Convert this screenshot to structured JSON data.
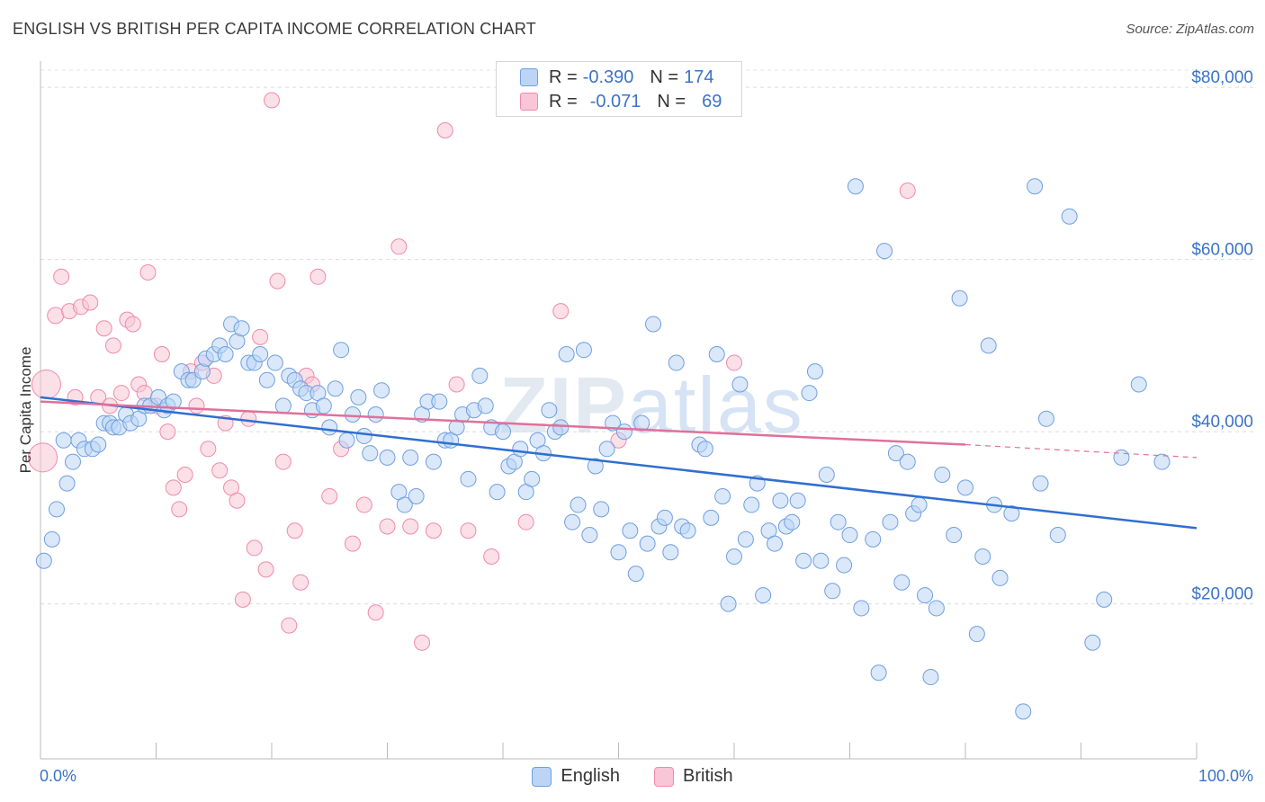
{
  "title": "ENGLISH VS BRITISH PER CAPITA INCOME CORRELATION CHART",
  "source": "Source: ZipAtlas.com",
  "watermark": {
    "bold": "ZIP",
    "light": "atlas"
  },
  "legend_top": [
    {
      "swatch_color": "#a9c8f0",
      "r_label": "R =",
      "r_value": "-0.390",
      "n_label": "N =",
      "n_value": "174"
    },
    {
      "swatch_color": "#f5b5c9",
      "r_label": "R =",
      "r_value": "-0.071",
      "n_label": "N =",
      "n_value": "69"
    }
  ],
  "legend_bottom": [
    {
      "label": "English",
      "color": "#a9c8f0"
    },
    {
      "label": "British",
      "color": "#f5b5c9"
    }
  ],
  "chart_data": {
    "type": "scatter",
    "title": "ENGLISH VS BRITISH PER CAPITA INCOME CORRELATION CHART",
    "ylabel": "Per Capita Income",
    "xlim": [
      0,
      100
    ],
    "ylim": [
      0,
      80000
    ],
    "x_tick_labels": [
      "0.0%",
      "100.0%"
    ],
    "y_ticks": [
      20000,
      40000,
      60000,
      80000
    ],
    "y_tick_labels": [
      "$20,000",
      "$40,000",
      "$60,000",
      "$80,000"
    ],
    "grid": "horizontal dashed",
    "legend_position": "top-center",
    "series": [
      {
        "name": "English",
        "color": "#6f9fe0",
        "r": -0.39,
        "n": 174,
        "trend": {
          "x0": 0,
          "y0": 44000,
          "x1": 100,
          "y1": 28800
        },
        "points": [
          [
            0.3,
            25000
          ],
          [
            1,
            27500
          ],
          [
            1.4,
            31000
          ],
          [
            2,
            39000
          ],
          [
            2.3,
            34000
          ],
          [
            2.8,
            36500
          ],
          [
            3.3,
            39000
          ],
          [
            3.8,
            38000
          ],
          [
            4.5,
            38000
          ],
          [
            5,
            38500
          ],
          [
            5.5,
            41000
          ],
          [
            6,
            41000
          ],
          [
            6.3,
            40500
          ],
          [
            6.8,
            40500
          ],
          [
            7.4,
            42000
          ],
          [
            7.8,
            41000
          ],
          [
            8.5,
            41500
          ],
          [
            9,
            43000
          ],
          [
            9.5,
            43000
          ],
          [
            10.2,
            44000
          ],
          [
            10.7,
            42500
          ],
          [
            11,
            43000
          ],
          [
            11.5,
            43500
          ],
          [
            12.2,
            47000
          ],
          [
            12.8,
            46000
          ],
          [
            13.2,
            46000
          ],
          [
            14,
            47000
          ],
          [
            14.3,
            48500
          ],
          [
            15,
            49000
          ],
          [
            15.5,
            50000
          ],
          [
            16,
            49000
          ],
          [
            16.5,
            52500
          ],
          [
            17,
            50500
          ],
          [
            17.4,
            52000
          ],
          [
            18,
            48000
          ],
          [
            18.5,
            48000
          ],
          [
            19,
            49000
          ],
          [
            19.6,
            46000
          ],
          [
            20.3,
            48000
          ],
          [
            21,
            43000
          ],
          [
            21.5,
            46500
          ],
          [
            22,
            46000
          ],
          [
            22.5,
            45000
          ],
          [
            23,
            44500
          ],
          [
            23.5,
            42500
          ],
          [
            24,
            44500
          ],
          [
            24.5,
            43000
          ],
          [
            25,
            40500
          ],
          [
            25.5,
            45000
          ],
          [
            26,
            49500
          ],
          [
            26.5,
            39000
          ],
          [
            27,
            42000
          ],
          [
            27.5,
            44000
          ],
          [
            28,
            39500
          ],
          [
            28.5,
            37500
          ],
          [
            29,
            42000
          ],
          [
            29.5,
            44800
          ],
          [
            30,
            37000
          ],
          [
            31,
            33000
          ],
          [
            31.5,
            31500
          ],
          [
            32,
            37000
          ],
          [
            32.5,
            32500
          ],
          [
            33,
            42000
          ],
          [
            33.5,
            43500
          ],
          [
            34,
            36500
          ],
          [
            34.5,
            43500
          ],
          [
            35,
            39000
          ],
          [
            35.5,
            39000
          ],
          [
            36,
            40500
          ],
          [
            36.5,
            42000
          ],
          [
            37,
            34500
          ],
          [
            37.5,
            42500
          ],
          [
            38,
            46500
          ],
          [
            38.5,
            43000
          ],
          [
            39,
            40500
          ],
          [
            39.5,
            33000
          ],
          [
            40,
            40000
          ],
          [
            40.5,
            36000
          ],
          [
            41,
            36500
          ],
          [
            41.5,
            38000
          ],
          [
            42,
            33000
          ],
          [
            42.5,
            34500
          ],
          [
            43,
            39000
          ],
          [
            43.5,
            37500
          ],
          [
            44,
            42500
          ],
          [
            44.5,
            40000
          ],
          [
            45,
            40500
          ],
          [
            45.5,
            49000
          ],
          [
            46,
            29500
          ],
          [
            46.5,
            31500
          ],
          [
            47,
            49500
          ],
          [
            47.5,
            28000
          ],
          [
            48,
            36000
          ],
          [
            48.5,
            31000
          ],
          [
            49,
            38000
          ],
          [
            49.5,
            41000
          ],
          [
            50,
            26000
          ],
          [
            50.5,
            40000
          ],
          [
            51,
            28500
          ],
          [
            51.5,
            23500
          ],
          [
            52,
            41000
          ],
          [
            52.5,
            27000
          ],
          [
            53,
            52500
          ],
          [
            53.5,
            29000
          ],
          [
            54,
            30000
          ],
          [
            54.5,
            26000
          ],
          [
            55,
            48000
          ],
          [
            55.5,
            29000
          ],
          [
            56,
            28500
          ],
          [
            57,
            38500
          ],
          [
            57.5,
            38000
          ],
          [
            58,
            30000
          ],
          [
            58.5,
            49000
          ],
          [
            59,
            32500
          ],
          [
            59.5,
            20000
          ],
          [
            60,
            25500
          ],
          [
            60.5,
            45500
          ],
          [
            61,
            27500
          ],
          [
            61.5,
            31500
          ],
          [
            62,
            34000
          ],
          [
            62.5,
            21000
          ],
          [
            63,
            28500
          ],
          [
            63.5,
            27000
          ],
          [
            64,
            32000
          ],
          [
            64.5,
            29000
          ],
          [
            65,
            29500
          ],
          [
            65.5,
            32000
          ],
          [
            66,
            25000
          ],
          [
            66.5,
            44500
          ],
          [
            67,
            47000
          ],
          [
            67.5,
            25000
          ],
          [
            68,
            35000
          ],
          [
            68.5,
            21500
          ],
          [
            69,
            29500
          ],
          [
            69.5,
            24500
          ],
          [
            70,
            28000
          ],
          [
            70.5,
            68500
          ],
          [
            71,
            19500
          ],
          [
            72,
            27500
          ],
          [
            72.5,
            12000
          ],
          [
            73,
            61000
          ],
          [
            73.5,
            29500
          ],
          [
            74,
            37500
          ],
          [
            74.5,
            22500
          ],
          [
            75,
            36500
          ],
          [
            75.5,
            30500
          ],
          [
            76,
            31500
          ],
          [
            76.5,
            21000
          ],
          [
            77,
            11500
          ],
          [
            77.5,
            19500
          ],
          [
            78,
            35000
          ],
          [
            79,
            28000
          ],
          [
            79.5,
            55500
          ],
          [
            80,
            33500
          ],
          [
            81,
            16500
          ],
          [
            81.5,
            25500
          ],
          [
            82,
            50000
          ],
          [
            82.5,
            31500
          ],
          [
            83,
            23000
          ],
          [
            84,
            30500
          ],
          [
            85,
            7500
          ],
          [
            86,
            68500
          ],
          [
            86.5,
            34000
          ],
          [
            87,
            41500
          ],
          [
            88,
            28000
          ],
          [
            89,
            65000
          ],
          [
            91,
            15500
          ],
          [
            92,
            20500
          ],
          [
            93.5,
            37000
          ],
          [
            95,
            45500
          ],
          [
            97,
            36500
          ]
        ]
      },
      {
        "name": "British",
        "color": "#f08aab",
        "r": -0.071,
        "n": 69,
        "trend": {
          "x0": 0,
          "y0": 43500,
          "x1": 80,
          "y1": 38500
        },
        "trend_dashed_to": {
          "x": 100,
          "y": 37000
        },
        "points": [
          [
            0.2,
            37000
          ],
          [
            0.5,
            45500
          ],
          [
            1.3,
            53500
          ],
          [
            1.8,
            58000
          ],
          [
            2.5,
            54000
          ],
          [
            3,
            44000
          ],
          [
            3.5,
            54500
          ],
          [
            4.3,
            55000
          ],
          [
            5,
            44000
          ],
          [
            5.5,
            52000
          ],
          [
            6,
            43000
          ],
          [
            6.3,
            50000
          ],
          [
            7,
            44500
          ],
          [
            7.5,
            53000
          ],
          [
            8,
            52500
          ],
          [
            8.5,
            45500
          ],
          [
            9,
            44500
          ],
          [
            9.3,
            58500
          ],
          [
            10,
            43000
          ],
          [
            10.5,
            49000
          ],
          [
            11,
            40000
          ],
          [
            11.5,
            33500
          ],
          [
            12,
            31000
          ],
          [
            12.5,
            35000
          ],
          [
            13,
            47000
          ],
          [
            13.5,
            43000
          ],
          [
            14,
            48000
          ],
          [
            14.5,
            38000
          ],
          [
            15,
            46500
          ],
          [
            15.5,
            35500
          ],
          [
            16,
            41000
          ],
          [
            16.5,
            33500
          ],
          [
            17,
            32000
          ],
          [
            17.5,
            20500
          ],
          [
            18,
            41500
          ],
          [
            18.5,
            26500
          ],
          [
            19,
            51000
          ],
          [
            19.5,
            24000
          ],
          [
            20,
            78500
          ],
          [
            20.5,
            57500
          ],
          [
            21,
            36500
          ],
          [
            21.5,
            17500
          ],
          [
            22,
            28500
          ],
          [
            22.5,
            22500
          ],
          [
            23,
            46500
          ],
          [
            23.5,
            45500
          ],
          [
            24,
            58000
          ],
          [
            25,
            32500
          ],
          [
            26,
            38000
          ],
          [
            27,
            27000
          ],
          [
            28,
            31500
          ],
          [
            29,
            19000
          ],
          [
            30,
            29000
          ],
          [
            31,
            61500
          ],
          [
            32,
            29000
          ],
          [
            33,
            15500
          ],
          [
            34,
            28500
          ],
          [
            35,
            75000
          ],
          [
            36,
            45500
          ],
          [
            37,
            28500
          ],
          [
            39,
            25500
          ],
          [
            42,
            29500
          ],
          [
            45,
            54000
          ],
          [
            50,
            39000
          ],
          [
            60,
            48000
          ],
          [
            75,
            68000
          ]
        ]
      }
    ]
  }
}
